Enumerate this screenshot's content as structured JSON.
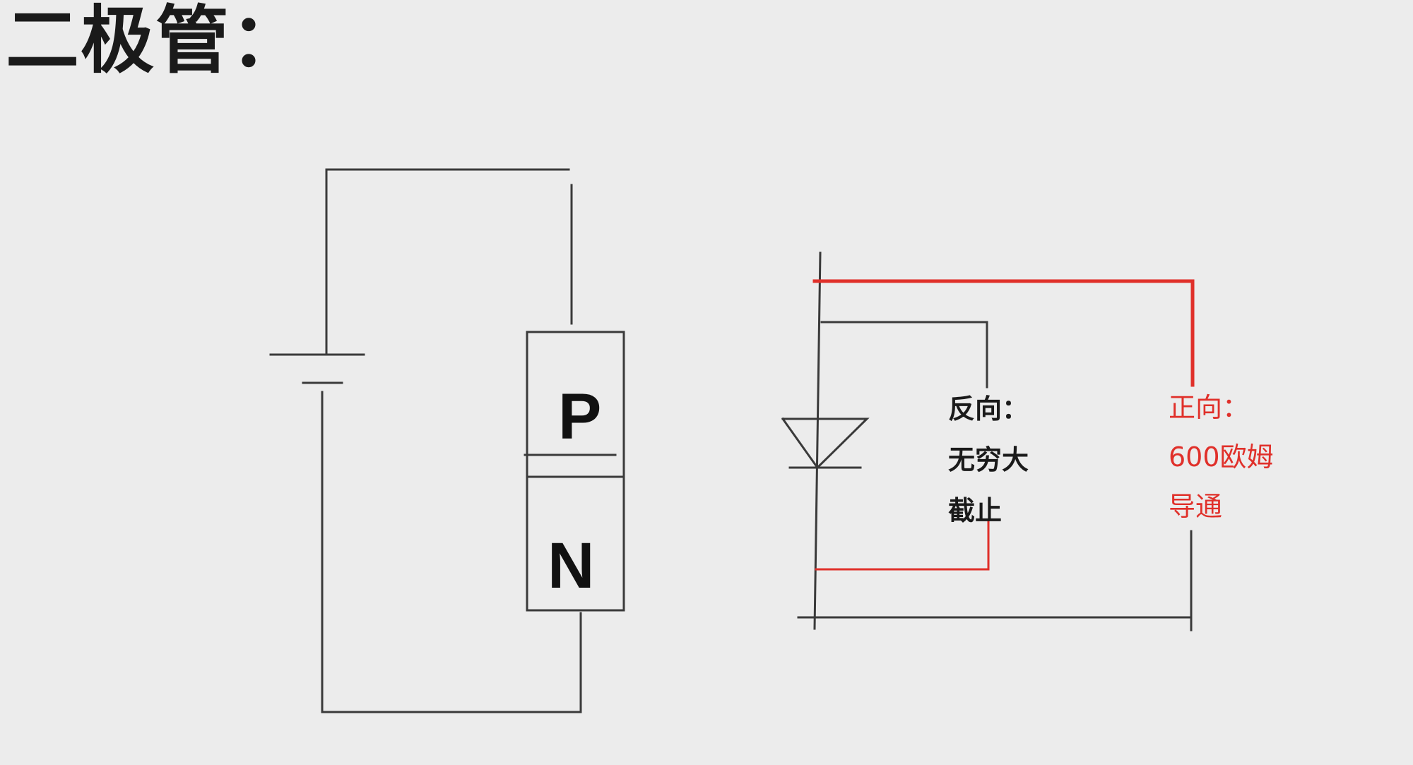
{
  "title": "二极管：",
  "pn_block": {
    "p_label": "P",
    "n_label": "N"
  },
  "reverse_note": {
    "line1": "反向：",
    "line2": "无穷大",
    "line3": "截止"
  },
  "forward_note": {
    "line1": "正向：",
    "line2": "600欧姆",
    "line3": "导通"
  },
  "colors": {
    "background": "#ececec",
    "wire": "#3a3a3a",
    "highlight": "#e0302a"
  }
}
